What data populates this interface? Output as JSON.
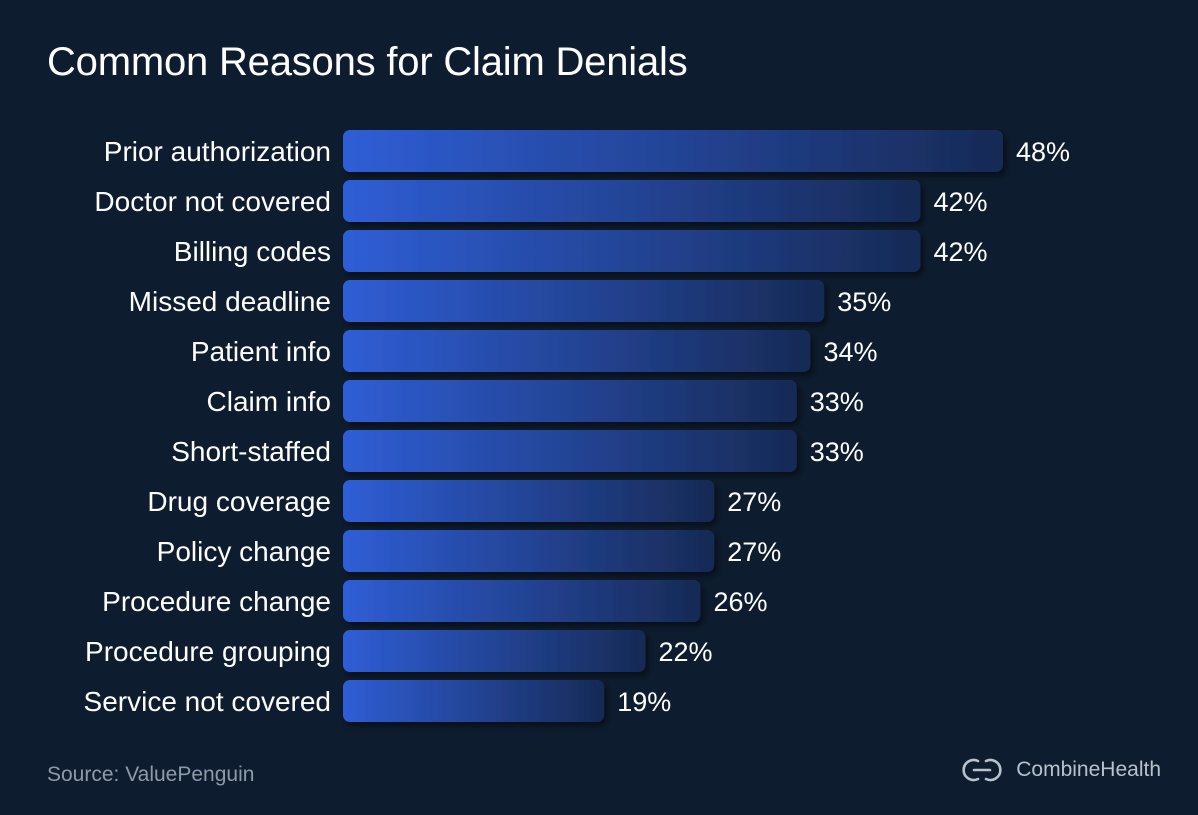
{
  "chart_data": {
    "type": "bar",
    "orientation": "horizontal",
    "title": "Common Reasons for Claim Denials",
    "categories": [
      "Prior authorization",
      "Doctor not covered",
      "Billing codes",
      "Missed deadline",
      "Patient info",
      "Claim info",
      "Short-staffed",
      "Drug coverage",
      "Policy change",
      "Procedure change",
      "Procedure grouping",
      "Service not covered"
    ],
    "values": [
      48,
      42,
      42,
      35,
      34,
      33,
      33,
      27,
      27,
      26,
      22,
      19
    ],
    "data_labels": [
      "48%",
      "42%",
      "42%",
      "35%",
      "34%",
      "33%",
      "33%",
      "27%",
      "27%",
      "26%",
      "22%",
      "19%"
    ],
    "xlim": [
      0,
      48
    ],
    "grid": false,
    "legend": "none",
    "colors": {
      "bar_start": "#2f5ed6",
      "bar_end": "#172a55",
      "background": "#0d1c2e"
    }
  },
  "footer": {
    "source": "Source: ValuePenguin",
    "brand": "CombineHealth"
  },
  "icons": {
    "brand_logo": "combinehealth-logo-icon"
  }
}
